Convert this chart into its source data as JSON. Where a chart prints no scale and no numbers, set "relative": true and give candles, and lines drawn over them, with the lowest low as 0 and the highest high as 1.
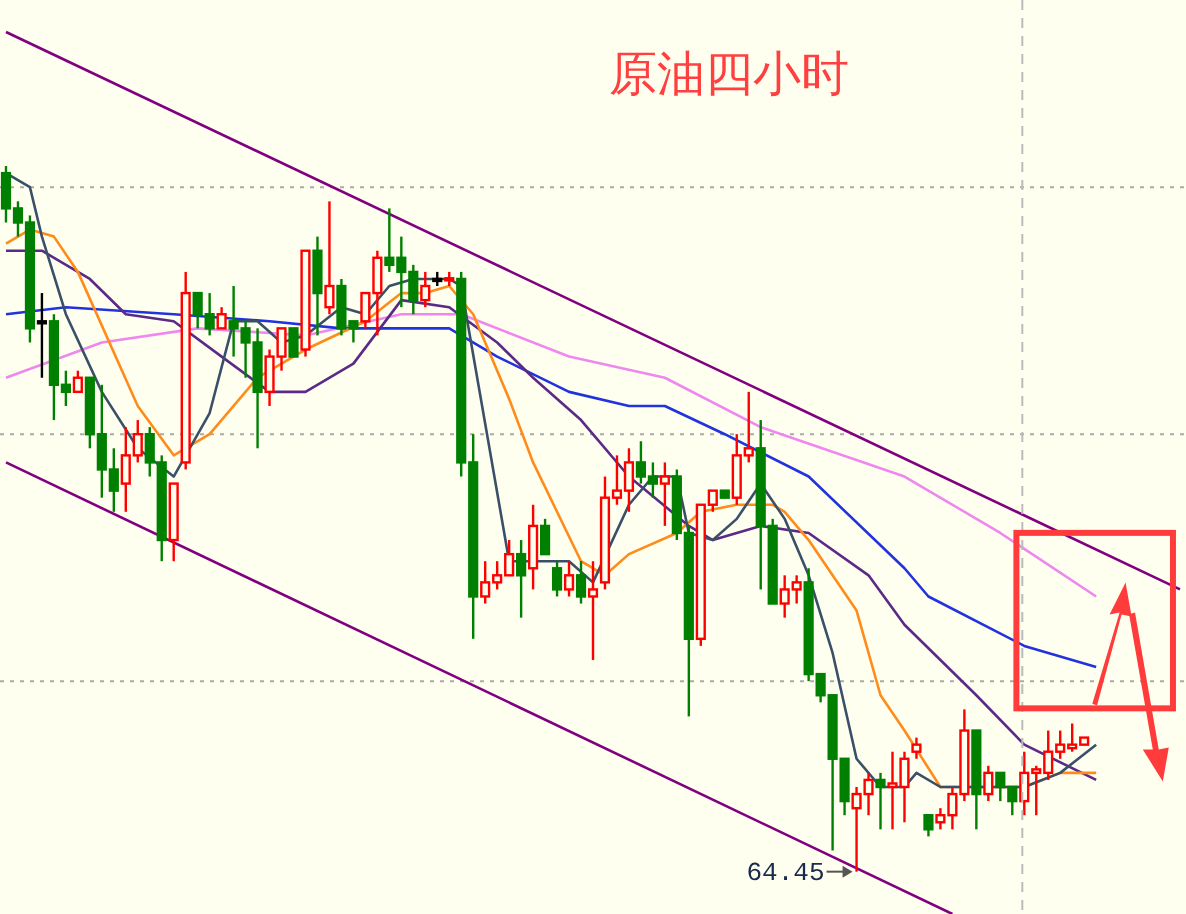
{
  "chart_data": {
    "type": "candlestick",
    "title": "原油四小时",
    "relative": true,
    "categories": [
      null,
      null,
      null,
      null,
      null,
      null,
      null,
      null,
      null,
      null,
      null,
      null,
      null,
      null,
      null,
      null,
      null,
      null,
      null,
      null,
      null,
      null,
      null,
      null,
      null,
      null,
      null,
      null,
      null,
      null,
      null,
      null,
      null,
      null,
      null,
      null,
      null,
      null,
      null,
      null,
      null,
      null,
      null,
      null,
      null,
      null,
      null,
      null,
      null,
      null,
      null,
      null,
      null,
      null,
      null,
      null,
      null,
      null,
      null,
      null,
      null,
      null,
      null,
      null,
      null,
      null,
      null,
      null,
      null,
      null,
      null,
      null,
      null,
      null,
      null,
      null,
      null,
      null,
      null,
      null,
      null,
      null,
      null,
      null,
      null,
      null,
      null,
      null,
      null,
      null,
      null,
      null,
      null,
      null,
      null,
      null,
      null,
      null,
      null
    ],
    "ohlc": [
      [
        0.99,
        1,
        0.92,
        0.94
      ],
      [
        0.94,
        0.95,
        0.9,
        0.92
      ],
      [
        0.92,
        0.93,
        0.75,
        0.77
      ],
      [
        0.78,
        0.82,
        0.7,
        0.78
      ],
      [
        0.78,
        0.79,
        0.64,
        0.69
      ],
      [
        0.69,
        0.71,
        0.66,
        0.68
      ],
      [
        0.68,
        0.71,
        0.68,
        0.7
      ],
      [
        0.7,
        0.7,
        0.6,
        0.62
      ],
      [
        0.62,
        0.69,
        0.53,
        0.57
      ],
      [
        0.57,
        0.6,
        0.51,
        0.54
      ],
      [
        0.55,
        0.63,
        0.51,
        0.59
      ],
      [
        0.59,
        0.64,
        0.58,
        0.62
      ],
      [
        0.62,
        0.63,
        0.56,
        0.58
      ],
      [
        0.58,
        0.59,
        0.44,
        0.47
      ],
      [
        0.47,
        0.55,
        0.44,
        0.55
      ],
      [
        0.58,
        0.85,
        0.57,
        0.82
      ],
      [
        0.82,
        0.82,
        0.77,
        0.79
      ],
      [
        0.79,
        0.82,
        0.76,
        0.77
      ],
      [
        0.77,
        0.8,
        0.77,
        0.79
      ],
      [
        0.78,
        0.83,
        0.73,
        0.77
      ],
      [
        0.77,
        0.78,
        0.7,
        0.75
      ],
      [
        0.75,
        0.77,
        0.6,
        0.68
      ],
      [
        0.68,
        0.74,
        0.66,
        0.73
      ],
      [
        0.73,
        0.77,
        0.71,
        0.77
      ],
      [
        0.77,
        0.77,
        0.73,
        0.73
      ],
      [
        0.74,
        0.88,
        0.73,
        0.88
      ],
      [
        0.88,
        0.9,
        0.76,
        0.82
      ],
      [
        0.8,
        0.95,
        0.79,
        0.83
      ],
      [
        0.83,
        0.84,
        0.76,
        0.77
      ],
      [
        0.78,
        0.78,
        0.75,
        0.77
      ],
      [
        0.78,
        0.82,
        0.77,
        0.82
      ],
      [
        0.82,
        0.88,
        0.76,
        0.87
      ],
      [
        0.87,
        0.94,
        0.85,
        0.86
      ],
      [
        0.87,
        0.9,
        0.8,
        0.85
      ],
      [
        0.85,
        0.86,
        0.79,
        0.81
      ],
      [
        0.81,
        0.85,
        0.8,
        0.83
      ],
      [
        0.84,
        0.85,
        0.83,
        0.84
      ],
      [
        0.838,
        0.85,
        0.83,
        0.841
      ],
      [
        0.84,
        0.85,
        0.56,
        0.58
      ],
      [
        0.58,
        0.62,
        0.33,
        0.39
      ],
      [
        0.39,
        0.44,
        0.38,
        0.41
      ],
      [
        0.41,
        0.44,
        0.4,
        0.42
      ],
      [
        0.42,
        0.47,
        0.42,
        0.45
      ],
      [
        0.45,
        0.47,
        0.36,
        0.42
      ],
      [
        0.43,
        0.52,
        0.4,
        0.49
      ],
      [
        0.49,
        0.5,
        0.45,
        0.45
      ],
      [
        0.43,
        0.44,
        0.39,
        0.4
      ],
      [
        0.4,
        0.44,
        0.39,
        0.42
      ],
      [
        0.42,
        0.44,
        0.38,
        0.39
      ],
      [
        0.39,
        0.44,
        0.3,
        0.4
      ],
      [
        0.41,
        0.56,
        0.4,
        0.53
      ],
      [
        0.53,
        0.59,
        0.52,
        0.54
      ],
      [
        0.54,
        0.6,
        0.51,
        0.58
      ],
      [
        0.58,
        0.61,
        0.55,
        0.56
      ],
      [
        0.56,
        0.58,
        0.53,
        0.55
      ],
      [
        0.55,
        0.58,
        0.49,
        0.56
      ],
      [
        0.56,
        0.57,
        0.47,
        0.48
      ],
      [
        0.48,
        0.49,
        0.22,
        0.33
      ],
      [
        0.33,
        0.52,
        0.32,
        0.52
      ],
      [
        0.52,
        0.54,
        0.51,
        0.54
      ],
      [
        0.54,
        0.54,
        0.53,
        0.53
      ],
      [
        0.53,
        0.62,
        0.52,
        0.59
      ],
      [
        0.59,
        0.68,
        0.58,
        0.6
      ],
      [
        0.6,
        0.64,
        0.4,
        0.49
      ],
      [
        0.49,
        0.5,
        0.38,
        0.38
      ],
      [
        0.38,
        0.42,
        0.36,
        0.4
      ],
      [
        0.4,
        0.42,
        0.38,
        0.41
      ],
      [
        0.41,
        0.43,
        0.27,
        0.28
      ],
      [
        0.28,
        0.28,
        0.24,
        0.25
      ],
      [
        0.25,
        0.25,
        0.03,
        0.16
      ],
      [
        0.16,
        0.16,
        0.08,
        0.1
      ],
      [
        0.09,
        0.12,
        0,
        0.11
      ],
      [
        0.11,
        0.14,
        0.08,
        0.13
      ],
      [
        0.13,
        0.14,
        0.06,
        0.12
      ],
      [
        0.12,
        0.17,
        0.06,
        0.125
      ],
      [
        0.12,
        0.17,
        0.07,
        0.16
      ],
      [
        0.17,
        0.19,
        0.16,
        0.18
      ],
      [
        0.08,
        0.08,
        0.05,
        0.06
      ],
      [
        0.07,
        0.09,
        0.06,
        0.08
      ],
      [
        0.08,
        0.12,
        0.06,
        0.11
      ],
      [
        0.11,
        0.23,
        0.1,
        0.2
      ],
      [
        0.2,
        0.2,
        0.06,
        0.11
      ],
      [
        0.11,
        0.15,
        0.1,
        0.14
      ],
      [
        0.14,
        0.14,
        0.1,
        0.12
      ],
      [
        0.12,
        0.12,
        0.08,
        0.1
      ],
      [
        0.1,
        0.17,
        0.08,
        0.14
      ],
      [
        0.14,
        0.15,
        0.08,
        0.145
      ],
      [
        0.14,
        0.2,
        0.13,
        0.17
      ],
      [
        0.17,
        0.2,
        0.16,
        0.18
      ],
      [
        0.175,
        0.21,
        0.17,
        0.18
      ],
      [
        0.18,
        0.19,
        0.18,
        0.19
      ],
      null,
      null,
      null,
      null,
      null,
      null,
      null,
      null
    ],
    "series": [
      {
        "type": "line",
        "color": "#ee88ee",
        "values": [
          0.7,
          null,
          null,
          null,
          null,
          null,
          null,
          null,
          0.75,
          null,
          null,
          null,
          null,
          null,
          null,
          null,
          0.77,
          null,
          null,
          null,
          null,
          null,
          null,
          null,
          null,
          0.76,
          null,
          null,
          null,
          null,
          null,
          null,
          null,
          0.79,
          null,
          null,
          null,
          null,
          0.79,
          null,
          null,
          null,
          null,
          null,
          null,
          null,
          null,
          0.73,
          null,
          null,
          null,
          null,
          null,
          null,
          null,
          0.7,
          null,
          null,
          null,
          null,
          null,
          null,
          null,
          0.63,
          null,
          null,
          null,
          null,
          null,
          null,
          null,
          null,
          null,
          null,
          null,
          0.56,
          null,
          null,
          null,
          null,
          null,
          null,
          null,
          0.48,
          null,
          null,
          null,
          null,
          null,
          null,
          null,
          0.39,
          null,
          null,
          null,
          null,
          null,
          null,
          null
        ]
      },
      {
        "type": "line",
        "color": "#2233dd",
        "values": [
          0.79,
          null,
          null,
          null,
          null,
          0.8,
          null,
          null,
          null,
          null,
          null,
          null,
          null,
          null,
          0.79,
          null,
          null,
          null,
          null,
          null,
          null,
          null,
          0.78,
          null,
          null,
          null,
          null,
          null,
          0.77,
          null,
          null,
          null,
          null,
          0.77,
          null,
          null,
          null,
          0.77,
          null,
          null,
          null,
          0.73,
          null,
          null,
          null,
          null,
          null,
          0.68,
          null,
          null,
          null,
          null,
          0.66,
          null,
          null,
          0.66,
          null,
          null,
          null,
          null,
          0.62,
          null,
          null,
          null,
          null,
          null,
          null,
          0.56,
          null,
          null,
          null,
          null,
          null,
          null,
          null,
          0.43,
          null,
          0.39,
          null,
          null,
          null,
          null,
          null,
          null,
          null,
          0.32,
          null,
          null,
          null,
          null,
          null,
          0.29,
          null,
          null,
          null,
          null,
          null,
          null,
          null
        ]
      },
      {
        "type": "line",
        "color": "#5b2a86",
        "values": [
          0.88,
          null,
          null,
          0.88,
          null,
          null,
          null,
          0.84,
          null,
          null,
          0.79,
          null,
          null,
          null,
          0.78,
          null,
          null,
          null,
          0.73,
          null,
          null,
          null,
          0.68,
          null,
          null,
          0.68,
          null,
          null,
          null,
          0.72,
          null,
          null,
          null,
          0.81,
          null,
          null,
          null,
          0.8,
          null,
          null,
          null,
          0.75,
          null,
          null,
          0.7,
          null,
          null,
          null,
          0.64,
          null,
          null,
          null,
          0.56,
          null,
          null,
          null,
          null,
          0.49,
          null,
          0.47,
          null,
          null,
          null,
          0.49,
          null,
          null,
          null,
          0.48,
          null,
          null,
          null,
          null,
          0.42,
          null,
          null,
          0.35,
          null,
          null,
          null,
          null,
          null,
          0.25,
          null,
          null,
          null,
          0.18,
          null,
          null,
          null,
          null,
          null,
          0.13,
          null,
          null,
          null,
          null,
          null,
          null,
          null
        ]
      },
      {
        "type": "line",
        "color": "#ff8c1a",
        "values": [
          0.89,
          null,
          0.91,
          null,
          0.9,
          null,
          0.85,
          null,
          null,
          null,
          null,
          0.66,
          null,
          null,
          0.59,
          null,
          null,
          0.62,
          null,
          null,
          null,
          0.7,
          null,
          null,
          null,
          0.74,
          null,
          null,
          null,
          null,
          0.78,
          null,
          null,
          0.82,
          null,
          0.82,
          null,
          0.83,
          null,
          0.79,
          null,
          null,
          0.67,
          null,
          0.58,
          null,
          null,
          null,
          0.44,
          null,
          0.42,
          null,
          0.45,
          null,
          null,
          null,
          0.48,
          null,
          0.51,
          null,
          null,
          0.52,
          null,
          null,
          0.52,
          0.51,
          null,
          0.47,
          null,
          null,
          null,
          0.37,
          null,
          0.25,
          null,
          0.2,
          null,
          null,
          0.12,
          null,
          null,
          null,
          null,
          null,
          null,
          0.12,
          null,
          null,
          0.14,
          null,
          null,
          0.14,
          null,
          null,
          null,
          null,
          null,
          null,
          null
        ]
      },
      {
        "type": "line",
        "color": "#3a5068",
        "values": [
          0.99,
          null,
          0.97,
          0.9,
          null,
          0.79,
          null,
          null,
          0.68,
          null,
          null,
          0.6,
          null,
          null,
          0.56,
          null,
          null,
          0.65,
          null,
          0.78,
          null,
          0.78,
          null,
          0.75,
          null,
          0.76,
          null,
          null,
          0.8,
          null,
          0.79,
          null,
          0.83,
          null,
          0.84,
          null,
          null,
          0.84,
          0.83,
          null,
          null,
          null,
          0.44,
          null,
          0.44,
          null,
          null,
          0.44,
          null,
          0.41,
          null,
          null,
          0.52,
          null,
          0.56,
          null,
          0.56,
          0.48,
          null,
          0.47,
          null,
          0.5,
          null,
          0.55,
          null,
          0.5,
          null,
          0.42,
          null,
          0.31,
          null,
          0.16,
          null,
          0.12,
          null,
          0.12,
          0.14,
          null,
          0.12,
          null,
          null,
          0.12,
          null,
          null,
          null,
          0.12,
          null,
          null,
          0.14,
          null,
          null,
          0.18,
          null,
          null,
          null,
          null,
          null,
          null,
          null
        ]
      },
      {
        "type": "line",
        "color": "#800080",
        "values": [
          1.19,
          null,
          null,
          null,
          null,
          null,
          null,
          null,
          null,
          null,
          null,
          null,
          null,
          null,
          null,
          null,
          null,
          null,
          null,
          null,
          null,
          null,
          null,
          null,
          null,
          null,
          null,
          null,
          null,
          null,
          null,
          null,
          null,
          null,
          null,
          null,
          null,
          null,
          null,
          null,
          null,
          null,
          null,
          null,
          null,
          null,
          null,
          null,
          null,
          null,
          null,
          null,
          null,
          null,
          null,
          null,
          null,
          null,
          null,
          null,
          null,
          null,
          null,
          null,
          null,
          null,
          null,
          null,
          null,
          null,
          null,
          null,
          null,
          null,
          null,
          null,
          null,
          null,
          null,
          null,
          null,
          null,
          null,
          null,
          null,
          null,
          null,
          null,
          null,
          null,
          null,
          null,
          null,
          null,
          null,
          null,
          null,
          null,
          0.4
        ]
      },
      {
        "type": "line",
        "color": "#800080",
        "values": [
          0.58,
          null,
          null,
          null,
          null,
          null,
          null,
          null,
          null,
          null,
          null,
          null,
          null,
          null,
          null,
          null,
          null,
          null,
          null,
          null,
          null,
          null,
          null,
          null,
          null,
          null,
          null,
          null,
          null,
          null,
          null,
          null,
          null,
          null,
          null,
          null,
          null,
          null,
          null,
          null,
          null,
          null,
          null,
          null,
          null,
          null,
          null,
          null,
          null,
          null,
          null,
          null,
          null,
          null,
          null,
          null,
          null,
          null,
          null,
          null,
          null,
          null,
          null,
          null,
          null,
          null,
          null,
          null,
          null,
          null,
          null,
          null,
          null,
          null,
          null,
          null,
          null,
          null,
          null,
          -0.06,
          null,
          null,
          null,
          null,
          null,
          null,
          null,
          null,
          null,
          null,
          null,
          null,
          null,
          null,
          null,
          null,
          null,
          null,
          null
        ]
      }
    ],
    "ref_lines": [
      {
        "axis": "y",
        "value": 0.97,
        "line_style": "dotted",
        "color": "#aaaaaa"
      },
      {
        "axis": "y",
        "value": 0.62,
        "line_style": "dotted",
        "color": "#aaaaaa"
      },
      {
        "axis": "y",
        "value": 0.27,
        "line_style": "dotted",
        "color": "#aaaaaa"
      }
    ],
    "annotations": [
      "64.45"
    ]
  }
}
